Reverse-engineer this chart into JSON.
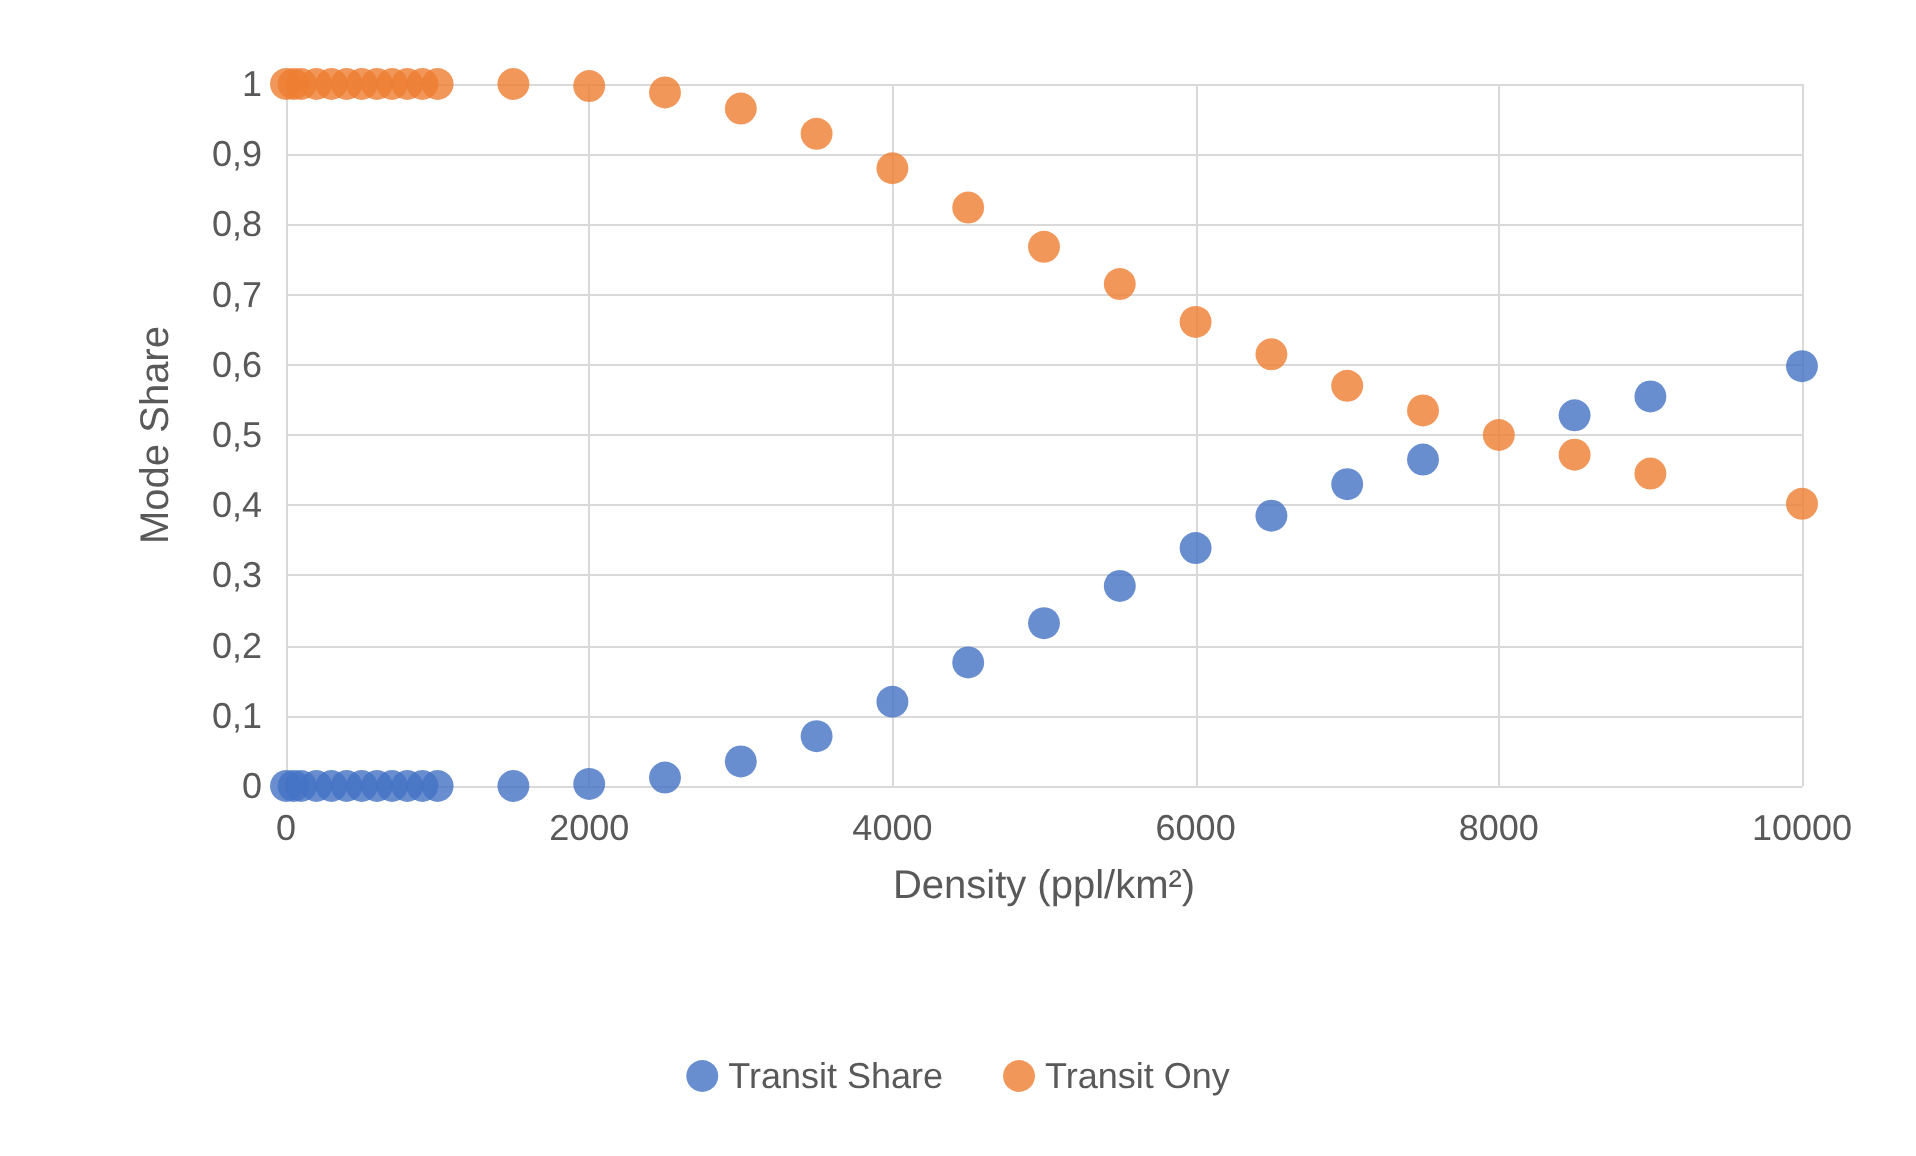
{
  "chart_data": {
    "type": "scatter",
    "xlabel": "Density (ppl/km²)",
    "ylabel": "Mode Share",
    "xlim": [
      0,
      10000
    ],
    "xticks": [
      0,
      2000,
      4000,
      6000,
      8000,
      10000
    ],
    "ylim": [
      0,
      1
    ],
    "yticks": [
      {
        "value": 0,
        "label": "0"
      },
      {
        "value": 0.1,
        "label": "0,1"
      },
      {
        "value": 0.2,
        "label": "0,2"
      },
      {
        "value": 0.3,
        "label": "0,3"
      },
      {
        "value": 0.4,
        "label": "0,4"
      },
      {
        "value": 0.5,
        "label": "0,5"
      },
      {
        "value": 0.6,
        "label": "0,6"
      },
      {
        "value": 0.7,
        "label": "0,7"
      },
      {
        "value": 0.8,
        "label": "0,8"
      },
      {
        "value": 0.9,
        "label": "0,9"
      },
      {
        "value": 1,
        "label": "1"
      }
    ],
    "grid": true,
    "legend": "bottom",
    "marker": "circle",
    "x": [
      0,
      50,
      100,
      200,
      300,
      400,
      500,
      600,
      700,
      800,
      900,
      1000,
      1500,
      2000,
      2500,
      3000,
      3500,
      4000,
      4500,
      5000,
      5500,
      6000,
      6500,
      7000,
      7500,
      8000,
      8500,
      9000,
      10000
    ],
    "series": [
      {
        "name": "Transit Share",
        "color": "#4472c4",
        "values": [
          0,
          0,
          0,
          0,
          0,
          0,
          0,
          0,
          0,
          0,
          0,
          0,
          0,
          0.003,
          0.012,
          0.035,
          0.071,
          0.12,
          0.176,
          0.232,
          0.285,
          0.339,
          0.385,
          0.43,
          0.465,
          null,
          0.528,
          0.555,
          0.598
        ]
      },
      {
        "name": "Transit Ony",
        "color": "#ed7d31",
        "values": [
          1,
          1,
          1,
          1,
          1,
          1,
          1,
          1,
          1,
          1,
          1,
          1,
          1,
          0.997,
          0.988,
          0.965,
          0.929,
          0.88,
          0.824,
          0.768,
          0.715,
          0.661,
          0.615,
          0.57,
          0.535,
          0.5,
          0.472,
          0.445,
          0.402
        ]
      }
    ]
  }
}
